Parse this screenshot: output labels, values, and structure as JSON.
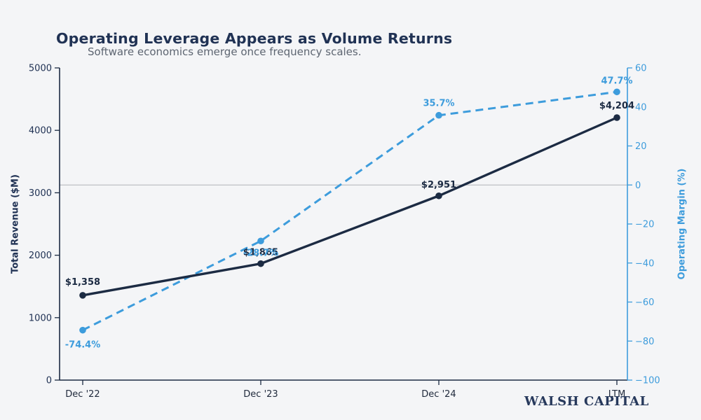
{
  "header": {
    "title": "Operating Leverage Appears as Volume Returns",
    "subtitle": "Software economics emerge once frequency scales."
  },
  "footer": {
    "brand": "WALSH CAPITAL"
  },
  "colors": {
    "background": "#f4f5f7",
    "revenue_line": "#1c2b43",
    "margin_line": "#3d9cdc",
    "title_text": "#203254",
    "subtitle_text": "#5d6571",
    "x_tick_text": "#212b3d",
    "zero_line": "#b0b3b8",
    "brand_text": "#27395c"
  },
  "chart_data": {
    "type": "line",
    "title": "Operating Leverage Appears as Volume Returns",
    "subtitle": "Software economics emerge once frequency scales.",
    "categories": [
      "Dec '22",
      "Dec '23",
      "Dec '24",
      "LTM"
    ],
    "series": [
      {
        "name": "Total Revenue ($M)",
        "axis": "left",
        "style": "solid",
        "color": "#1c2b43",
        "values": [
          1358,
          1865,
          2951,
          4204
        ],
        "point_labels": [
          "$1,358",
          "$1,865",
          "$2,951",
          "$4,204"
        ]
      },
      {
        "name": "Operating Margin (%)",
        "axis": "right",
        "style": "dashed",
        "color": "#3d9cdc",
        "values": [
          -74.4,
          -28.7,
          35.7,
          47.7
        ],
        "point_labels": [
          "-74.4%",
          "-28.7%",
          "35.7%",
          "47.7%"
        ]
      }
    ],
    "axes": {
      "left": {
        "label": "Total Revenue ($M)",
        "min": 0,
        "max": 5000,
        "ticks": [
          0,
          1000,
          2000,
          3000,
          4000,
          5000
        ],
        "color": "#203254"
      },
      "right": {
        "label": "Operating Margin (%)",
        "min": -100,
        "max": 60,
        "ticks": [
          60,
          40,
          20,
          0,
          -20,
          -40,
          -60,
          -80,
          -100
        ],
        "color": "#3d9cdc"
      },
      "x": {
        "ticks": [
          "Dec '22",
          "Dec '23",
          "Dec '24",
          "LTM"
        ]
      }
    },
    "zero_line": {
      "axis": "right",
      "value": 0
    },
    "grid": false,
    "legend": "none"
  }
}
